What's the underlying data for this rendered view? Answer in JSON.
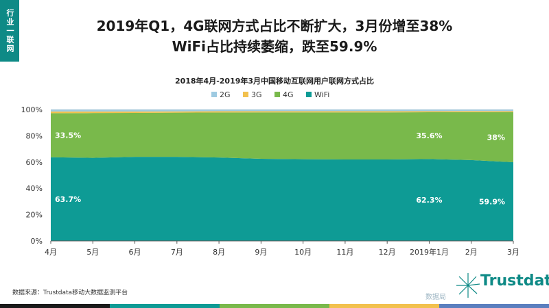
{
  "tag": "行业一联网",
  "headline": {
    "line1": "2019年Q1，4G联网方式占比不断扩大，3月份增至38%",
    "line2": "WiFi占比持续萎缩，跌至59.9%"
  },
  "source": "数据来源：Trustdata移动大数据监测平台",
  "logo_text": "Trustdata",
  "watermark": "数据局",
  "colors": {
    "2G": "#9ecae1",
    "3G": "#f2c14e",
    "4G": "#79b94b",
    "WiFi": "#0e9b95",
    "accent": "#0e8a86"
  },
  "chart_data": {
    "type": "area",
    "title": "2018年4月-2019年3月中国移动互联网用户联网方式占比",
    "categories": [
      "4月",
      "5月",
      "6月",
      "7月",
      "8月",
      "9月",
      "10月",
      "11月",
      "12月",
      "2019年1月",
      "2月",
      "3月"
    ],
    "ylim": [
      0,
      100
    ],
    "yticks": [
      "0%",
      "20%",
      "40%",
      "60%",
      "80%",
      "100%"
    ],
    "stacked": true,
    "legend_position": "top",
    "series": [
      {
        "name": "WiFi",
        "values": [
          63.7,
          63.2,
          64.0,
          64.0,
          63.5,
          62.5,
          62.2,
          62.0,
          62.0,
          62.3,
          61.5,
          59.9
        ]
      },
      {
        "name": "4G",
        "values": [
          33.5,
          34.1,
          33.4,
          33.6,
          34.2,
          35.3,
          35.6,
          35.8,
          35.8,
          35.6,
          36.5,
          38.0
        ]
      },
      {
        "name": "3G",
        "values": [
          1.3,
          1.2,
          1.1,
          1.0,
          1.0,
          0.9,
          0.9,
          0.9,
          0.9,
          0.8,
          0.8,
          0.8
        ]
      },
      {
        "name": "2G",
        "values": [
          1.5,
          1.5,
          1.5,
          1.4,
          1.3,
          1.3,
          1.3,
          1.3,
          1.3,
          1.3,
          1.2,
          1.3
        ]
      }
    ],
    "data_labels": [
      {
        "series": "4G",
        "index": 0,
        "text": "33.5%"
      },
      {
        "series": "4G",
        "index": 9,
        "text": "35.6%"
      },
      {
        "series": "4G",
        "index": 11,
        "text": "38%"
      },
      {
        "series": "WiFi",
        "index": 0,
        "text": "63.7%"
      },
      {
        "series": "WiFi",
        "index": 9,
        "text": "62.3%"
      },
      {
        "series": "WiFi",
        "index": 11,
        "text": "59.9%"
      }
    ]
  }
}
